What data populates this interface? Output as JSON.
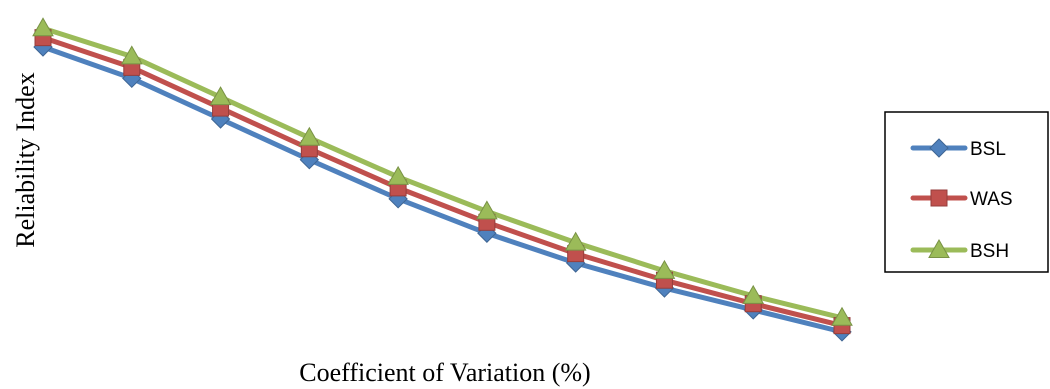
{
  "chart_data": {
    "type": "line",
    "title": "",
    "xlabel": "Coefficient of Variation (%)",
    "ylabel": "Reliability Index",
    "x": [
      1,
      2,
      3,
      4,
      5,
      6,
      7,
      8,
      9,
      10
    ],
    "xlim": [
      1,
      10
    ],
    "ylim": [
      0,
      10
    ],
    "grid": false,
    "legend_position": "right",
    "series": [
      {
        "name": "BSL",
        "color": "#4F81BD",
        "marker": "diamond",
        "values": [
          9.2,
          8.2,
          6.9,
          5.6,
          4.35,
          3.25,
          2.3,
          1.5,
          0.8,
          0.1
        ]
      },
      {
        "name": "WAS",
        "color": "#C0504D",
        "marker": "square",
        "values": [
          9.5,
          8.55,
          7.25,
          5.95,
          4.7,
          3.6,
          2.6,
          1.75,
          1.0,
          0.3
        ]
      },
      {
        "name": "BSH",
        "color": "#9BBB59",
        "marker": "triangle",
        "values": [
          9.8,
          8.9,
          7.6,
          6.3,
          5.05,
          3.95,
          2.95,
          2.05,
          1.25,
          0.55
        ]
      }
    ]
  }
}
